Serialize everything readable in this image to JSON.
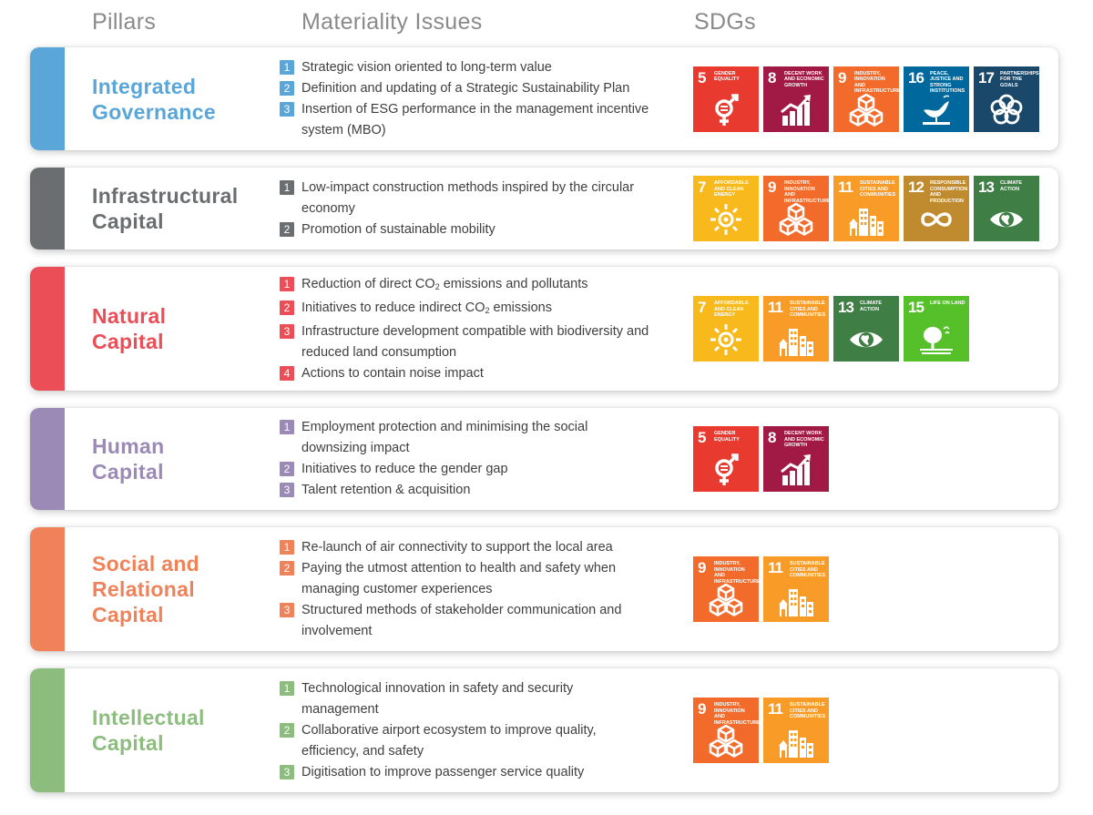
{
  "headers": {
    "pillars": "Pillars",
    "issues": "Materiality Issues",
    "sdgs": "SDGs"
  },
  "sdg_defs": {
    "5": {
      "num": "5",
      "label": "Gender Equality",
      "color": "#e83a2f",
      "icon": "gender-icon"
    },
    "7": {
      "num": "7",
      "label": "Affordable and Clean Energy",
      "color": "#f7b91c",
      "icon": "sun-icon"
    },
    "8": {
      "num": "8",
      "label": "Decent Work and Economic Growth",
      "color": "#a01a45",
      "icon": "growth-chart-icon"
    },
    "9": {
      "num": "9",
      "label": "Industry, Innovation and Infrastructure",
      "color": "#f26b2b",
      "icon": "cubes-icon"
    },
    "11": {
      "num": "11",
      "label": "Sustainable Cities and Communities",
      "color": "#f89b27",
      "icon": "city-icon"
    },
    "12": {
      "num": "12",
      "label": "Responsible Consumption and Production",
      "color": "#bf8b2e",
      "icon": "infinity-icon"
    },
    "13": {
      "num": "13",
      "label": "Climate Action",
      "color": "#3f7e44",
      "icon": "eye-globe-icon"
    },
    "15": {
      "num": "15",
      "label": "Life on Land",
      "color": "#56c02b",
      "icon": "tree-icon"
    },
    "16": {
      "num": "16",
      "label": "Peace, Justice and Strong Institutions",
      "color": "#00689d",
      "icon": "dove-icon"
    },
    "17": {
      "num": "17",
      "label": "Partnerships for the Goals",
      "color": "#19486a",
      "icon": "rings-icon"
    }
  },
  "pillars": [
    {
      "id": "integrated-governance",
      "title": "Integrated\nGovernance",
      "color": "#5aa6d8",
      "issues": [
        {
          "n": "1",
          "text": "Strategic vision oriented to long-term value"
        },
        {
          "n": "2",
          "text": "Definition and updating of a Strategic Sustainability Plan"
        },
        {
          "n": "3",
          "text": "Insertion of ESG performance in the management incentive system (MBO)"
        }
      ],
      "sdgs": [
        "5",
        "8",
        "9",
        "16",
        "17"
      ]
    },
    {
      "id": "infrastructural-capital",
      "title": "Infrastructural\nCapital",
      "color": "#6b6e70",
      "issues": [
        {
          "n": "1",
          "text": "Low-impact construction methods inspired by the circular economy"
        },
        {
          "n": "2",
          "text": "Promotion of sustainable mobility"
        }
      ],
      "sdgs": [
        "7",
        "9",
        "11",
        "12",
        "13"
      ]
    },
    {
      "id": "natural-capital",
      "title": "Natural\nCapital",
      "color": "#ec4e57",
      "issues": [
        {
          "n": "1",
          "text": "Reduction of direct CO",
          "sub": "2",
          "tail": " emissions and pollutants"
        },
        {
          "n": "2",
          "text": "Initiatives to reduce indirect CO",
          "sub": "2",
          "tail": " emissions"
        },
        {
          "n": "3",
          "text": "Infrastructure development compatible with biodiversity and reduced land consumption"
        },
        {
          "n": "4",
          "text": "Actions to contain noise impact"
        }
      ],
      "sdgs": [
        "7",
        "11",
        "13",
        "15"
      ]
    },
    {
      "id": "human-capital",
      "title": "Human\nCapital",
      "color": "#9b8ab5",
      "issues": [
        {
          "n": "1",
          "text": "Employment protection and minimising the social downsizing impact"
        },
        {
          "n": "2",
          "text": "Initiatives to reduce the gender gap"
        },
        {
          "n": "3",
          "text": "Talent retention & acquisition"
        }
      ],
      "sdgs": [
        "5",
        "8"
      ]
    },
    {
      "id": "social-relational-capital",
      "title": "Social and\nRelational\nCapital",
      "color": "#f0825a",
      "issues": [
        {
          "n": "1",
          "text": "Re-launch of air connectivity to support the local area"
        },
        {
          "n": "2",
          "text": "Paying the utmost attention to health and safety when managing customer experiences"
        },
        {
          "n": "3",
          "text": "Structured methods of stakeholder communication and involvement"
        }
      ],
      "sdgs": [
        "9",
        "11"
      ]
    },
    {
      "id": "intellectual-capital",
      "title": "Intellectual\nCapital",
      "color": "#8dbd7e",
      "issues": [
        {
          "n": "1",
          "text": "Technological innovation in safety and security management"
        },
        {
          "n": "2",
          "text": "Collaborative airport ecosystem to improve quality, efficiency, and safety"
        },
        {
          "n": "3",
          "text": "Digitisation to improve passenger service quality"
        }
      ],
      "sdgs": [
        "9",
        "11"
      ]
    }
  ]
}
